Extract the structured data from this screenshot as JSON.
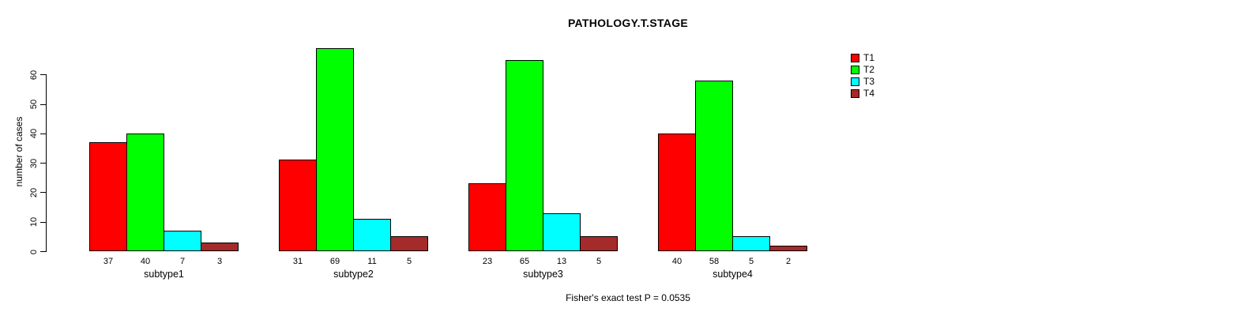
{
  "chart_data": {
    "type": "bar",
    "title": "PATHOLOGY.T.STAGE",
    "ylabel": "number of cases",
    "xlabel": "",
    "footer_note": "Fisher's exact test P = 0.0535",
    "categories": [
      "subtype1",
      "subtype2",
      "subtype3",
      "subtype4"
    ],
    "series": [
      {
        "name": "T1",
        "color": "#FF0000",
        "values": [
          37,
          31,
          23,
          40
        ]
      },
      {
        "name": "T2",
        "color": "#00FF00",
        "values": [
          40,
          69,
          65,
          58
        ]
      },
      {
        "name": "T3",
        "color": "#00FFFF",
        "values": [
          7,
          11,
          13,
          5
        ]
      },
      {
        "name": "T4",
        "color": "#A52A2A",
        "values": [
          3,
          5,
          5,
          2
        ]
      }
    ],
    "y_ticks": [
      0,
      10,
      20,
      30,
      40,
      50,
      60
    ],
    "ylim": [
      0,
      69
    ],
    "grid": false,
    "legend_position": "top-right",
    "bar_value_labels_shown": true
  }
}
